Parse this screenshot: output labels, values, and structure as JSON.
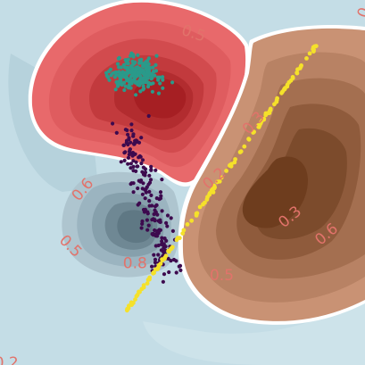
{
  "chart_data": {
    "type": "scatter",
    "title": "",
    "xlabel": "",
    "ylabel": "",
    "xlim": [
      -2.0,
      2.0
    ],
    "ylim": [
      -2.0,
      2.0
    ],
    "grid": false,
    "legend": "none",
    "colors": {
      "background": "#c4dde6",
      "red_region": "#e8696b",
      "red_core": "#aa1f22",
      "brown_region": "#c99274",
      "brown_core": "#6e3d1e",
      "slate_region": "#9fb8c4",
      "slate_core": "#5f7884",
      "teal_points": "#2a9a8a",
      "purple_points": "#3d0a4e",
      "yellow_points": "#f5e12a",
      "labels": "#e2736b"
    },
    "contour_labels": [
      {
        "text": "0.5",
        "x": 0.12,
        "y": 1.63,
        "angle": 18
      },
      {
        "text": "0.3",
        "x": 0.78,
        "y": 0.65,
        "angle": -48
      },
      {
        "text": "0.2",
        "x": 0.35,
        "y": 0.04,
        "angle": -40
      },
      {
        "text": "0.6",
        "x": -1.09,
        "y": -0.08,
        "angle": -50
      },
      {
        "text": "0.5",
        "x": -1.23,
        "y": -0.7,
        "angle": 45
      },
      {
        "text": "0.8",
        "x": -0.52,
        "y": -0.89,
        "angle": 0
      },
      {
        "text": "0.5",
        "x": 0.43,
        "y": -1.02,
        "angle": 0
      },
      {
        "text": "0.3",
        "x": 1.18,
        "y": -0.38,
        "angle": -40
      },
      {
        "text": "0.6",
        "x": 1.58,
        "y": -0.57,
        "angle": -40
      },
      {
        "text": "0.2",
        "x": -1.93,
        "y": -1.98,
        "angle": 0
      },
      {
        "text": "0",
        "x": 1.99,
        "y": 1.86,
        "angle": -70
      }
    ],
    "series": [
      {
        "color": "#2a9a8a",
        "count": 230,
        "center": [
          -0.52,
          1.18
        ],
        "spread": [
          0.38,
          0.22
        ],
        "shape": "blob"
      },
      {
        "color": "#3d0a4e",
        "count": 190,
        "from": [
          -0.6,
          0.6
        ],
        "to": [
          -0.15,
          -0.95
        ],
        "spread": 0.12,
        "shape": "band"
      },
      {
        "color": "#f5e12a",
        "count": 130,
        "from": [
          -0.62,
          -1.42
        ],
        "to": [
          1.49,
          1.54
        ],
        "spread": 0.01,
        "shape": "line"
      }
    ]
  }
}
